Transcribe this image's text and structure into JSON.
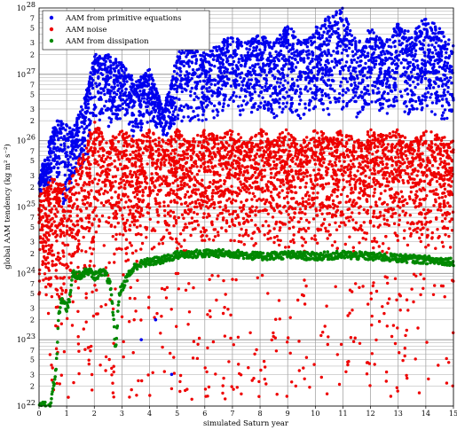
{
  "chart_data": {
    "type": "scatter",
    "xlabel": "simulated Saturn year",
    "ylabel": "global AAM tendency (kg m² s⁻²)",
    "xlim": [
      0,
      15
    ],
    "ylim_log10": [
      22,
      28
    ],
    "y_scale": "log",
    "grid": true,
    "legend_position": "top-left",
    "x_ticks": [
      0,
      1,
      2,
      3,
      4,
      5,
      6,
      7,
      8,
      9,
      10,
      11,
      12,
      13,
      14,
      15
    ],
    "y_major_ticks": [
      {
        "exp": 22,
        "label": "10",
        "sup": "22"
      },
      {
        "exp": 23,
        "label": "10",
        "sup": "23"
      },
      {
        "exp": 24,
        "label": "10",
        "sup": "24"
      },
      {
        "exp": 25,
        "label": "10",
        "sup": "25"
      },
      {
        "exp": 26,
        "label": "10",
        "sup": "26"
      },
      {
        "exp": 27,
        "label": "10",
        "sup": "27"
      },
      {
        "exp": 28,
        "label": "10",
        "sup": "28"
      }
    ],
    "y_minor_labels": [
      "2",
      "3",
      "5",
      "7"
    ],
    "series": [
      {
        "name": "AAM from primitive equations",
        "color": "#0000ee",
        "envelope": {
          "x": [
            0.0,
            0.3,
            0.6,
            0.9,
            1.2,
            1.5,
            1.8,
            2.0,
            2.5,
            3.0,
            3.5,
            4.0,
            4.5,
            5.0,
            5.5,
            6.0,
            6.5,
            7.0,
            7.5,
            8.0,
            8.5,
            9.0,
            9.5,
            10.0,
            10.5,
            11.0,
            11.5,
            12.0,
            12.5,
            13.0,
            13.5,
            14.0,
            14.5,
            15.0
          ],
          "low": [
            1.5e+25,
            2e+25,
            2.5e+25,
            1e+25,
            2e+25,
            4e+25,
            6e+25,
            2e+26,
            1.5e+26,
            2e+26,
            1e+26,
            2e+26,
            1e+26,
            2e+26,
            1.5e+26,
            2e+26,
            2e+26,
            3e+26,
            2e+26,
            3e+26,
            2e+26,
            3e+26,
            2e+26,
            3e+26,
            2e+26,
            3e+26,
            2e+26,
            3e+26,
            2e+26,
            3e+26,
            2e+26,
            3e+26,
            2e+26,
            2e+26
          ],
          "high": [
            3e+25,
            8e+25,
            2e+26,
            2e+26,
            1.5e+26,
            3e+26,
            8e+26,
            2e+27,
            2e+27,
            1.5e+27,
            8e+26,
            1.2e+27,
            3e+26,
            2e+27,
            4e+27,
            2e+27,
            3e+27,
            4e+27,
            3e+27,
            4e+27,
            3e+27,
            6e+27,
            3e+27,
            5e+27,
            8e+27,
            1e+28,
            3e+27,
            5e+27,
            3e+27,
            6e+27,
            4e+27,
            8e+27,
            5e+27,
            3e+27
          ]
        },
        "point_count": 3200
      },
      {
        "name": "AAM noise",
        "color": "#ee0000",
        "envelope": {
          "x": [
            0.0,
            0.5,
            1.0,
            1.5,
            2.0,
            2.5,
            3.0,
            3.5,
            4.0,
            4.5,
            5.0,
            5.5,
            6.0,
            6.5,
            7.0,
            7.5,
            8.0,
            8.5,
            9.0,
            9.5,
            10.0,
            10.5,
            11.0,
            11.5,
            12.0,
            12.5,
            13.0,
            13.5,
            14.0,
            14.5,
            15.0
          ],
          "low": [
            3e+23,
            3e+23,
            3e+23,
            5e+23,
            1e+24,
            1e+24,
            1e+24,
            1e+24,
            2e+24,
            2e+24,
            2e+24,
            2e+24,
            2e+24,
            2e+24,
            2e+24,
            2e+24,
            2e+24,
            2e+24,
            2e+24,
            2e+24,
            2e+24,
            2e+24,
            2e+24,
            2e+24,
            2e+24,
            2e+24,
            2e+24,
            2e+24,
            2e+24,
            2e+24,
            2e+24
          ],
          "high": [
            1.5e+25,
            3e+25,
            2e+25,
            6e+25,
            2e+26,
            1e+26,
            1.5e+26,
            1e+26,
            1.5e+26,
            1e+26,
            1.5e+26,
            1e+26,
            1.5e+26,
            1.2e+26,
            1.5e+26,
            1e+26,
            1.5e+26,
            1.2e+26,
            1.5e+26,
            1e+26,
            1.5e+26,
            1.2e+26,
            1.5e+26,
            1e+26,
            1.5e+26,
            1.2e+26,
            1.5e+26,
            1e+26,
            1.5e+26,
            1.2e+26,
            1e+26
          ]
        },
        "point_count": 3600
      },
      {
        "name": "AAM from dissipation",
        "color": "#008800",
        "x": [
          0.0,
          0.4,
          0.5,
          0.55,
          0.6,
          0.65,
          0.7,
          0.8,
          0.9,
          1.0,
          1.1,
          1.15,
          1.2,
          1.3,
          1.4,
          1.6,
          1.8,
          2.0,
          2.2,
          2.4,
          2.5,
          2.6,
          2.7,
          2.75,
          2.8,
          2.9,
          3.0,
          3.2,
          3.5,
          4.0,
          4.5,
          5.0,
          6.0,
          7.0,
          8.0,
          9.0,
          10.0,
          11.0,
          12.0,
          13.0,
          14.0,
          15.0
        ],
        "y": [
          1e+22,
          1e+22,
          2e+22,
          2e+22,
          3e+22,
          6e+22,
          2e+23,
          4e+23,
          4e+23,
          3e+23,
          4e+23,
          6e+23,
          1e+24,
          1e+24,
          9e+23,
          1e+24,
          1.1e+24,
          9e+23,
          1e+24,
          1e+24,
          8e+23,
          6e+23,
          2e+23,
          8e+22,
          1e+23,
          5e+23,
          6e+23,
          9e+23,
          1.3e+24,
          1.5e+24,
          1.6e+24,
          1.9e+24,
          2e+24,
          2e+24,
          1.8e+24,
          1.9e+24,
          1.8e+24,
          1.9e+24,
          1.8e+24,
          1.7e+24,
          1.6e+24,
          1.5e+24
        ]
      }
    ],
    "outliers": [
      {
        "x": 4.22,
        "y": 2e+23,
        "series": 0
      },
      {
        "x": 4.8,
        "y": 3e+22,
        "series": 0
      },
      {
        "x": 3.7,
        "y": 1e+23,
        "series": 0
      }
    ]
  }
}
